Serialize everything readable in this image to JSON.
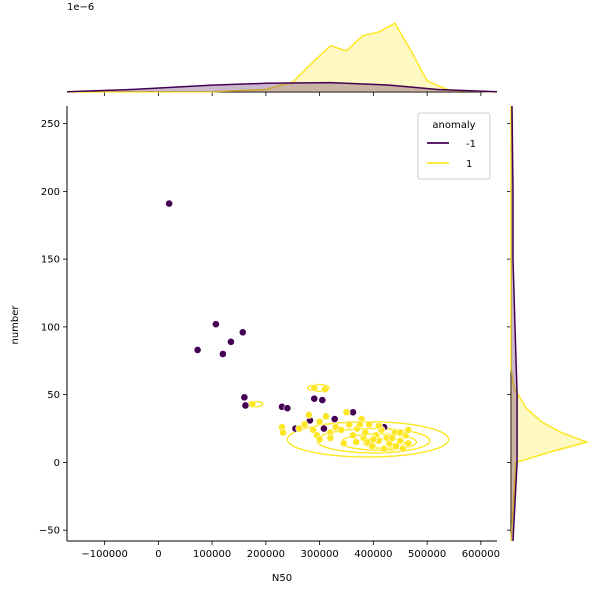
{
  "chart_data": {
    "type": "scatter",
    "xlabel": "N50",
    "ylabel": "number",
    "xlim": [
      -170000,
      630000
    ],
    "ylim": [
      -58,
      263
    ],
    "x_ticks": [
      -100000,
      0,
      100000,
      200000,
      300000,
      400000,
      500000,
      600000
    ],
    "y_ticks": [
      -50,
      0,
      50,
      100,
      150,
      200,
      250
    ],
    "x_tick_labels": [
      "−100000",
      "0",
      "100000",
      "200000",
      "300000",
      "400000",
      "500000",
      "600000"
    ],
    "y_tick_labels": [
      "−50",
      "0",
      "50",
      "100",
      "150",
      "200",
      "250"
    ],
    "top_marginal_offset_label": "1e−6",
    "legend": {
      "title": "anomaly",
      "placement": "top-right",
      "entries": [
        {
          "label": "-1",
          "color": "#440154"
        },
        {
          "label": "1",
          "color": "#fde725"
        }
      ]
    },
    "series": [
      {
        "name": "-1",
        "color": "#440154",
        "points": [
          [
            20000,
            191
          ],
          [
            107000,
            102
          ],
          [
            73000,
            83
          ],
          [
            120000,
            80
          ],
          [
            135000,
            89
          ],
          [
            157000,
            96
          ],
          [
            160000,
            48
          ],
          [
            162000,
            42
          ],
          [
            230000,
            41
          ],
          [
            240000,
            40
          ],
          [
            290000,
            47
          ],
          [
            305000,
            46
          ],
          [
            255000,
            25
          ],
          [
            282000,
            31
          ],
          [
            308000,
            25
          ],
          [
            328000,
            32
          ],
          [
            362000,
            37
          ],
          [
            420000,
            26
          ]
        ]
      },
      {
        "name": "1",
        "color": "#fde725",
        "points": [
          [
            290000,
            55
          ],
          [
            310000,
            54
          ],
          [
            175000,
            43
          ],
          [
            230000,
            26
          ],
          [
            232000,
            22
          ],
          [
            272000,
            28
          ],
          [
            288000,
            24
          ],
          [
            295000,
            20
          ],
          [
            300000,
            30
          ],
          [
            312000,
            34
          ],
          [
            320000,
            22
          ],
          [
            330000,
            26
          ],
          [
            340000,
            24
          ],
          [
            350000,
            37
          ],
          [
            355000,
            28
          ],
          [
            362000,
            20
          ],
          [
            370000,
            25
          ],
          [
            378000,
            32
          ],
          [
            382000,
            18
          ],
          [
            385000,
            22
          ],
          [
            390000,
            15
          ],
          [
            392000,
            28
          ],
          [
            398000,
            12
          ],
          [
            405000,
            20
          ],
          [
            410000,
            16
          ],
          [
            415000,
            24
          ],
          [
            420000,
            10
          ],
          [
            425000,
            18
          ],
          [
            430000,
            14
          ],
          [
            440000,
            22
          ],
          [
            442000,
            12
          ],
          [
            450000,
            16
          ],
          [
            455000,
            10
          ],
          [
            460000,
            20
          ],
          [
            465000,
            14
          ],
          [
            465000,
            24
          ],
          [
            300000,
            17
          ],
          [
            320000,
            18
          ],
          [
            345000,
            14
          ],
          [
            368000,
            15
          ],
          [
            400000,
            17
          ],
          [
            435000,
            18
          ],
          [
            450000,
            22
          ],
          [
            280000,
            35
          ],
          [
            262000,
            25
          ],
          [
            375000,
            28
          ],
          [
            410000,
            27
          ]
        ]
      }
    ],
    "marginal_x": {
      "-1": [
        [
          -170000,
          0.02
        ],
        [
          -50000,
          0.2
        ],
        [
          100000,
          0.55
        ],
        [
          200000,
          0.7
        ],
        [
          320000,
          0.75
        ],
        [
          430000,
          0.55
        ],
        [
          520000,
          0.2
        ],
        [
          630000,
          0.02
        ]
      ],
      "1": [
        [
          -170000,
          0
        ],
        [
          100000,
          0.02
        ],
        [
          200000,
          0.2
        ],
        [
          250000,
          0.8
        ],
        [
          290000,
          2.5
        ],
        [
          320000,
          3.7
        ],
        [
          350000,
          3.3
        ],
        [
          380000,
          4.5
        ],
        [
          410000,
          4.8
        ],
        [
          440000,
          5.5
        ],
        [
          470000,
          3.3
        ],
        [
          500000,
          0.9
        ],
        [
          540000,
          0.15
        ],
        [
          630000,
          0
        ]
      ]
    },
    "marginal_y": {
      "-1": [
        [
          -58,
          0.002
        ],
        [
          0,
          0.006
        ],
        [
          50,
          0.006
        ],
        [
          100,
          0.004
        ],
        [
          150,
          0.002
        ],
        [
          200,
          0.002
        ],
        [
          263,
          0.001
        ]
      ],
      "1": [
        [
          -58,
          0
        ],
        [
          0,
          0.005
        ],
        [
          8,
          0.04
        ],
        [
          15,
          0.075
        ],
        [
          22,
          0.05
        ],
        [
          30,
          0.03
        ],
        [
          40,
          0.015
        ],
        [
          55,
          0.003
        ],
        [
          70,
          0
        ],
        [
          263,
          0
        ]
      ]
    },
    "contour_levels_1": [
      {
        "center": [
          390000,
          17
        ],
        "rx": 150000,
        "ry": 13
      },
      {
        "center": [
          400000,
          16
        ],
        "rx": 105000,
        "ry": 9
      },
      {
        "center": [
          410000,
          15
        ],
        "rx": 70000,
        "ry": 6
      },
      {
        "center": [
          420000,
          14
        ],
        "rx": 38000,
        "ry": 3.5
      },
      {
        "center": [
          298000,
          55
        ],
        "rx": 20000,
        "ry": 2.5
      },
      {
        "center": [
          180000,
          43
        ],
        "rx": 14000,
        "ry": 2
      }
    ]
  }
}
